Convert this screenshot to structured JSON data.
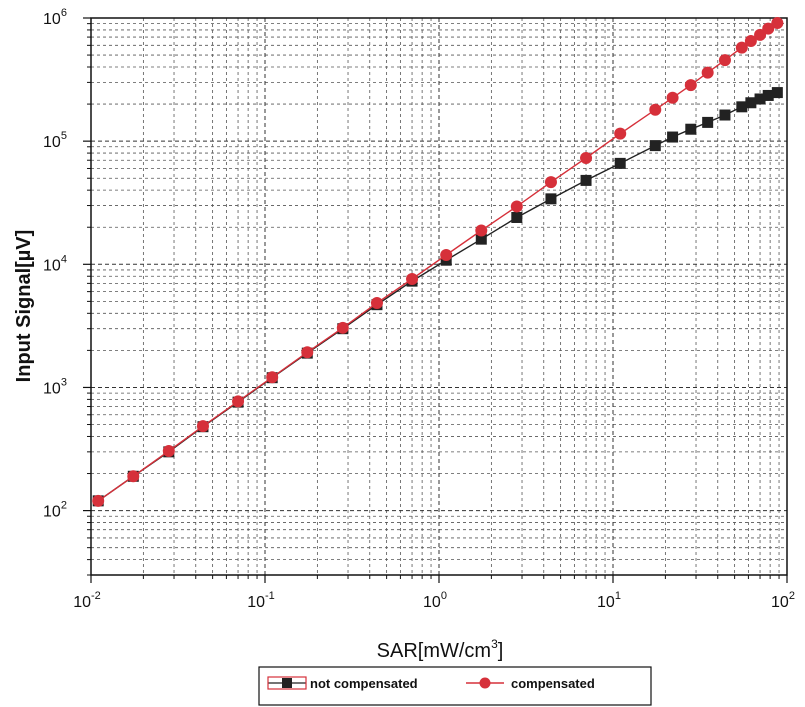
{
  "chart_data": {
    "type": "line",
    "xlabel": "SAR[mW/cm3]",
    "xlabel_main": "SAR[mW/cm",
    "xlabel_sup": "3",
    "xlabel_end": "]",
    "ylabel": "Input Signal[µV]",
    "xscale": "log",
    "yscale": "log",
    "xlim": [
      0.01,
      100
    ],
    "ylim": [
      30,
      1000000
    ],
    "grid": true,
    "legend_position": "bottom-center",
    "x_ticks": [
      {
        "base": "10",
        "exp": "-2"
      },
      {
        "base": "10",
        "exp": "-1"
      },
      {
        "base": "10",
        "exp": "0"
      },
      {
        "base": "10",
        "exp": "1"
      },
      {
        "base": "10",
        "exp": "2"
      }
    ],
    "y_ticks": [
      {
        "base": "10",
        "exp": "2"
      },
      {
        "base": "10",
        "exp": "3"
      },
      {
        "base": "10",
        "exp": "4"
      },
      {
        "base": "10",
        "exp": "5"
      },
      {
        "base": "10",
        "exp": "6"
      }
    ],
    "series": [
      {
        "name": "not compensated",
        "color": "#222222",
        "marker": "square",
        "x": [
          0.011,
          0.0175,
          0.028,
          0.044,
          0.07,
          0.11,
          0.175,
          0.28,
          0.44,
          0.7,
          1.1,
          1.75,
          2.8,
          4.4,
          7,
          11,
          17.5,
          22,
          28,
          35,
          44,
          55,
          62,
          70,
          78,
          88
        ],
        "y": [
          120,
          190,
          300,
          480,
          760,
          1200,
          1900,
          3000,
          4700,
          7300,
          10800,
          16000,
          24000,
          34000,
          48000,
          66000,
          92000,
          108000,
          125000,
          142000,
          163000,
          190000,
          205000,
          220000,
          235000,
          248000
        ]
      },
      {
        "name": "compensated",
        "color": "#d6303a",
        "marker": "circle",
        "x": [
          0.011,
          0.0175,
          0.028,
          0.044,
          0.07,
          0.11,
          0.175,
          0.28,
          0.44,
          0.7,
          1.1,
          1.75,
          2.8,
          4.4,
          7,
          11,
          17.5,
          22,
          28,
          35,
          44,
          55,
          62,
          70,
          78,
          88
        ],
        "y": [
          120,
          190,
          305,
          485,
          770,
          1210,
          1930,
          3050,
          4850,
          7600,
          11900,
          18800,
          29500,
          46500,
          73000,
          115000,
          180000,
          225000,
          285000,
          360000,
          455000,
          575000,
          650000,
          730000,
          820000,
          910000
        ]
      }
    ]
  }
}
